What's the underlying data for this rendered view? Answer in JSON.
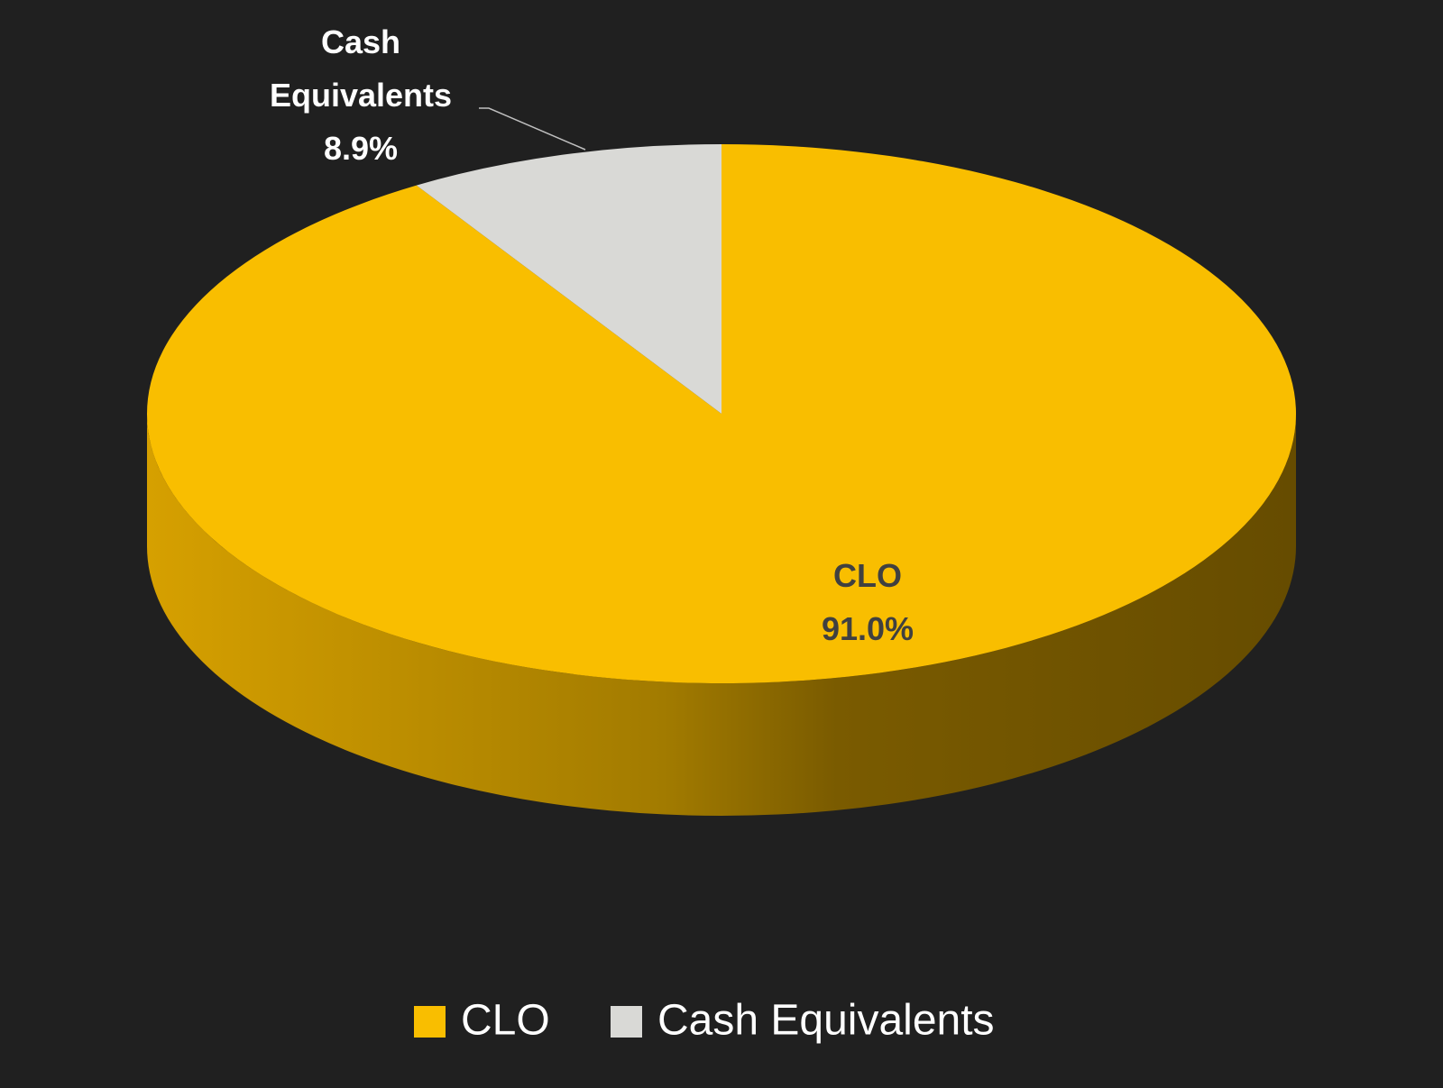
{
  "chart_data": {
    "type": "pie",
    "categories": [
      "CLO",
      "Cash Equivalents"
    ],
    "values": [
      91.0,
      8.9
    ],
    "value_labels": [
      "91.0%",
      "8.9%"
    ],
    "colors": [
      "#F9BE00",
      "#D9D9D6"
    ],
    "legend": "bottom"
  }
}
